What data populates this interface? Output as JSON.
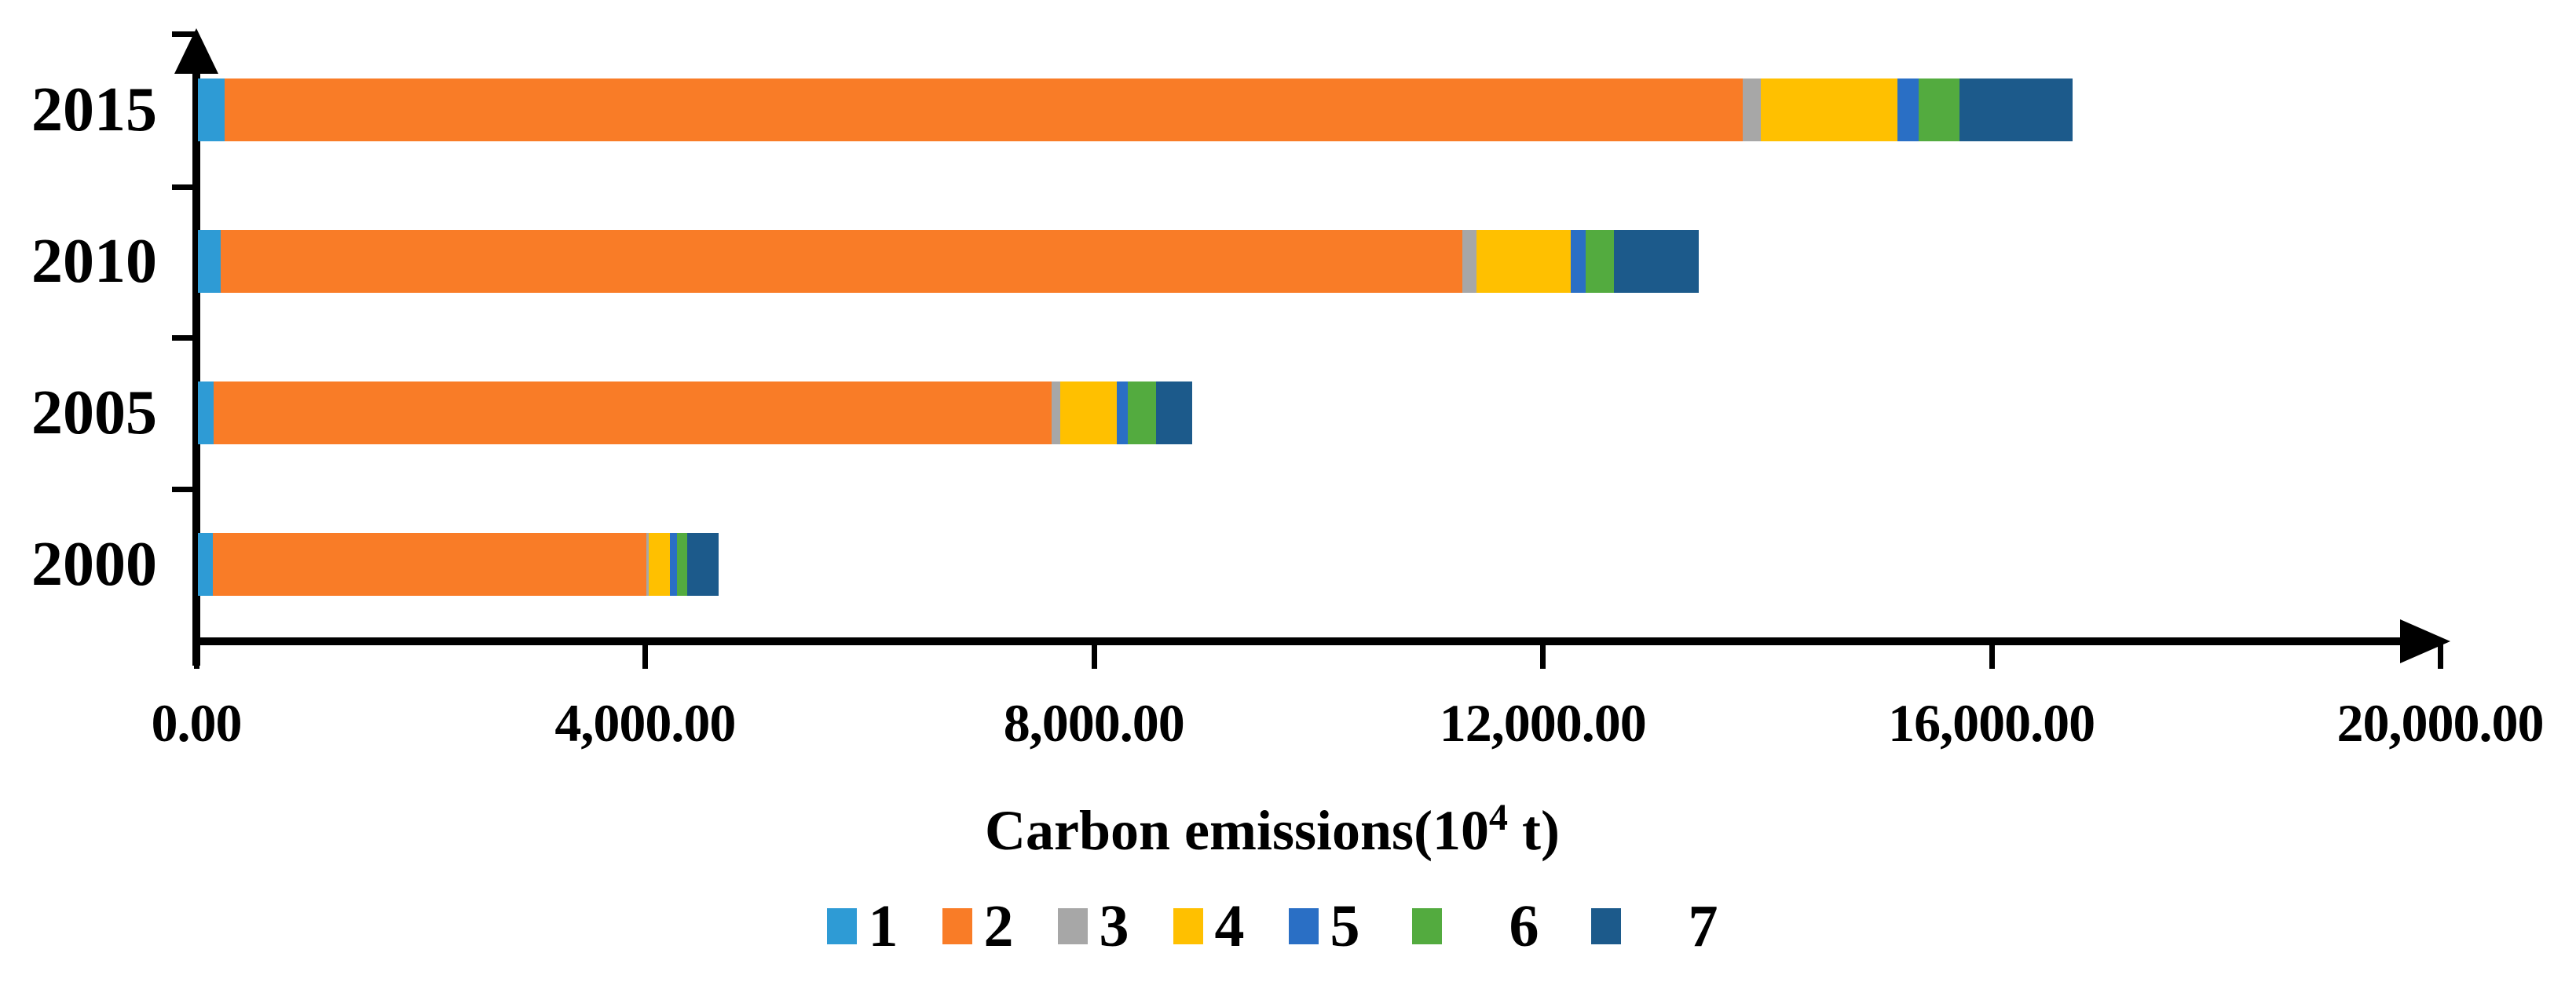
{
  "chart_data": {
    "type": "bar",
    "orientation": "horizontal",
    "stacked": true,
    "title": "",
    "xlabel": "Carbon emissions(10⁴ t)",
    "xlabel_main": "Carbon emissions(10",
    "xlabel_sup": "4",
    "xlabel_end": " t)",
    "ylabel": "",
    "categories": [
      "2015",
      "2010",
      "2005",
      "2000"
    ],
    "series": [
      {
        "name": "1",
        "color": "#2E9BD5",
        "values": [
          240,
          200,
          140,
          130
        ]
      },
      {
        "name": "2",
        "color": "#F97C27",
        "values": [
          13530,
          11070,
          7470,
          3870
        ]
      },
      {
        "name": "3",
        "color": "#A7A7A7",
        "values": [
          160,
          130,
          80,
          20
        ]
      },
      {
        "name": "4",
        "color": "#FFC000",
        "values": [
          1220,
          840,
          500,
          190
        ]
      },
      {
        "name": "5",
        "color": "#2A6FC5",
        "values": [
          190,
          130,
          100,
          60
        ]
      },
      {
        "name": "6",
        "color": "#53AB3F",
        "values": [
          360,
          250,
          250,
          90
        ]
      },
      {
        "name": "7",
        "color": "#1C5A8B",
        "values": [
          1010,
          760,
          320,
          280
        ]
      }
    ],
    "totals": [
      16710,
      13380,
      8860,
      4640
    ],
    "xlim": [
      0,
      20000
    ],
    "xticks": [
      0,
      4000,
      8000,
      12000,
      16000,
      20000
    ],
    "xtick_labels": [
      "0.00",
      "4,000.00",
      "8,000.00",
      "12,000.00",
      "16,000.00",
      "20,000.00"
    ],
    "legend_labels": [
      "1",
      "2",
      "3",
      "4",
      "5",
      "6",
      "7"
    ],
    "legend_position": "bottom",
    "grid": false,
    "axis_color": "#000000",
    "background": "#FFFFFF"
  }
}
